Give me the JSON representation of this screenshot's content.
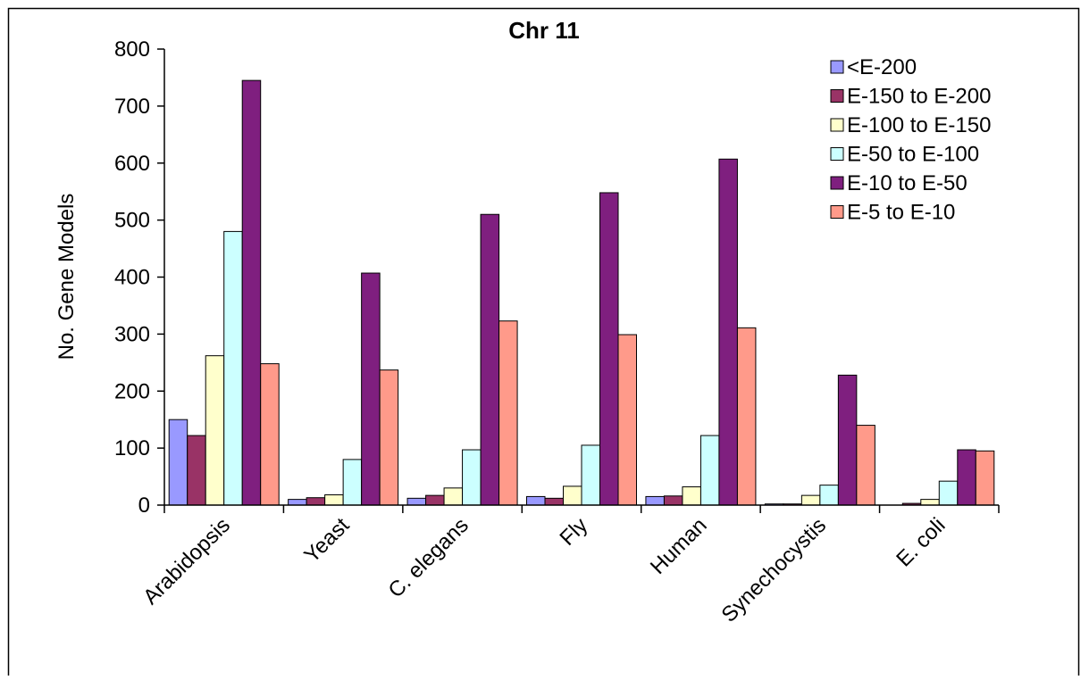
{
  "chart_data": {
    "type": "bar",
    "title": "Chr 11",
    "xlabel": "",
    "ylabel": "No. Gene Models",
    "ylim": [
      0,
      800
    ],
    "yticks": [
      0,
      100,
      200,
      300,
      400,
      500,
      600,
      700,
      800
    ],
    "grid": false,
    "legend_position": "top-right",
    "categories": [
      "Arabidopsis",
      "Yeast",
      "C. elegans",
      "Fly",
      "Human",
      "Synechocystis",
      "E. coli"
    ],
    "series": [
      {
        "name": "<E-200",
        "color": "#9999ff",
        "values": [
          150,
          10,
          12,
          15,
          15,
          2,
          0
        ]
      },
      {
        "name": "E-150 to E-200",
        "color": "#993366",
        "values": [
          122,
          13,
          17,
          12,
          16,
          2,
          3
        ]
      },
      {
        "name": "E-100 to E-150",
        "color": "#ffffcc",
        "values": [
          262,
          18,
          30,
          33,
          32,
          17,
          10
        ]
      },
      {
        "name": "E-50 to E-100",
        "color": "#ccffff",
        "values": [
          480,
          80,
          97,
          105,
          122,
          35,
          42
        ]
      },
      {
        "name": "E-10 to E-50",
        "color": "#7f1f7f",
        "values": [
          745,
          407,
          510,
          548,
          607,
          228,
          97
        ]
      },
      {
        "name": "E-5 to E-10",
        "color": "#ff9a8a",
        "values": [
          248,
          237,
          323,
          299,
          311,
          140,
          95
        ]
      }
    ]
  }
}
